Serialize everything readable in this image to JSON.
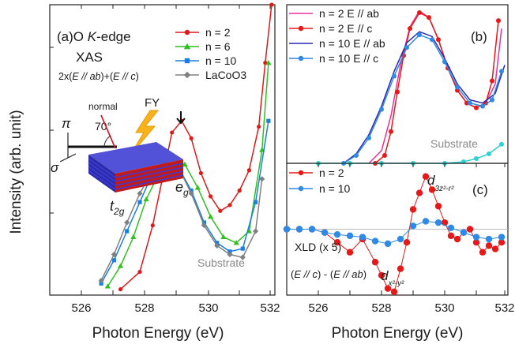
{
  "figure": {
    "ylabel": "Intensity (arb. unit)",
    "xlabel_left": "Photon Energy (eV)",
    "xlabel_right": "Photon Energy (eV)"
  },
  "panel_a": {
    "tag": "(a)",
    "title_main": "O ",
    "title_k": "K",
    "title_rest": "-edge",
    "title_xas": "XAS",
    "formula_pre": "2x(",
    "formula_e1": "E",
    "formula_ab": " // ab",
    "formula_mid": ")+(",
    "formula_e2": "E",
    "formula_c": " // c",
    "formula_post": ")",
    "label_pi": "π",
    "label_sigma": "σ",
    "label_normal": "normal",
    "label_angle": "70°",
    "label_fy": "FY",
    "label_t2g": "t",
    "label_t2g_sub": "2g",
    "label_eg": "e",
    "label_eg_sub": "g",
    "label_substrate": "Substrate",
    "xticks": [
      "526",
      "528",
      "530",
      "532"
    ]
  },
  "panel_b": {
    "tag": "(b)",
    "label_substrate": "Substrate",
    "xticks": [
      "526",
      "528",
      "530",
      "532"
    ]
  },
  "panel_c": {
    "tag": "(c)",
    "label_xld": "XLD (x 5)",
    "formula_pre": "(",
    "formula_e1": "E",
    "formula_c": " // c",
    "formula_mid": ") - (",
    "formula_e2": "E",
    "formula_ab": " // ab",
    "formula_post": ")",
    "orb1_d": "d",
    "orb1_sub": "x²-y²",
    "orb2_d": "d",
    "orb2_sub": "3z²-r²"
  },
  "chart_data": [
    {
      "id": "a",
      "type": "line",
      "title": "O K-edge XAS",
      "subtitle": "2x(E // ab)+(E // c)",
      "xlabel": "Photon Energy (eV)",
      "ylabel": "Intensity (arb. unit)",
      "xlim": [
        525,
        532
      ],
      "ylim": [
        0,
        1
      ],
      "grid": false,
      "legend_position": "top-right",
      "series": [
        {
          "name": "n = 2",
          "color": "#e01818",
          "marker": "circle",
          "x": [
            527.2,
            527.8,
            528.2,
            528.5,
            528.8,
            529.1,
            529.4,
            529.7,
            530.0,
            530.3,
            530.6,
            530.9,
            531.2,
            531.5,
            531.7,
            531.9
          ],
          "y": [
            0.02,
            0.08,
            0.24,
            0.4,
            0.56,
            0.6,
            0.54,
            0.42,
            0.34,
            0.29,
            0.31,
            0.36,
            0.43,
            0.58,
            0.8,
            1.0
          ]
        },
        {
          "name": "n = 6",
          "color": "#2fc020",
          "marker": "triangle",
          "x": [
            526.8,
            527.2,
            527.6,
            528.0,
            528.4,
            528.8,
            529.2,
            529.6,
            530.0,
            530.4,
            530.8,
            531.2,
            531.6,
            531.8
          ],
          "y": [
            0.03,
            0.1,
            0.2,
            0.33,
            0.42,
            0.47,
            0.45,
            0.37,
            0.27,
            0.2,
            0.18,
            0.22,
            0.5,
            0.8
          ]
        },
        {
          "name": "n = 10",
          "color": "#1a7fe0",
          "marker": "square",
          "x": [
            526.6,
            527.0,
            527.4,
            527.8,
            528.2,
            528.6,
            529.0,
            529.4,
            529.8,
            530.2,
            530.6,
            531.0,
            531.4,
            531.8
          ],
          "y": [
            0.04,
            0.12,
            0.22,
            0.32,
            0.42,
            0.46,
            0.44,
            0.36,
            0.25,
            0.18,
            0.15,
            0.16,
            0.32,
            0.6
          ]
        },
        {
          "name": "LaCoO3",
          "color": "#808080",
          "marker": "diamond",
          "x": [
            526.6,
            527.0,
            527.4,
            527.8,
            528.2,
            528.6,
            529.0,
            529.4,
            529.8,
            530.2,
            530.6,
            531.0,
            531.4,
            531.6
          ],
          "y": [
            0.05,
            0.14,
            0.25,
            0.35,
            0.43,
            0.46,
            0.44,
            0.35,
            0.24,
            0.17,
            0.14,
            0.13,
            0.22,
            0.4
          ]
        }
      ]
    },
    {
      "id": "b",
      "type": "line",
      "xlabel": "Photon Energy (eV)",
      "xlim": [
        525,
        532
      ],
      "ylim": [
        0,
        1
      ],
      "grid": false,
      "legend_position": "top-left",
      "series": [
        {
          "name": "n = 2 E // ab",
          "color": "#e8309a",
          "marker": "line",
          "x": [
            527.6,
            528.0,
            528.3,
            528.6,
            528.9,
            529.2,
            529.5,
            529.8,
            530.1,
            530.4,
            530.7,
            531.0,
            531.3,
            531.6,
            531.8
          ],
          "y": [
            0.0,
            0.08,
            0.3,
            0.62,
            0.86,
            0.96,
            0.92,
            0.78,
            0.6,
            0.46,
            0.38,
            0.35,
            0.38,
            0.5,
            0.85
          ]
        },
        {
          "name": "n = 2 E // c",
          "color": "#e81818",
          "marker": "circle",
          "x": [
            527.8,
            528.1,
            528.3,
            528.5,
            528.7,
            528.9,
            529.2,
            529.5,
            529.8,
            530.1,
            530.4,
            530.7,
            531.0,
            531.3,
            531.5,
            531.7
          ],
          "y": [
            0.0,
            0.05,
            0.2,
            0.45,
            0.68,
            0.85,
            0.95,
            0.92,
            0.78,
            0.6,
            0.46,
            0.38,
            0.35,
            0.38,
            0.52,
            0.9
          ]
        },
        {
          "name": "n = 10 E // ab",
          "color": "#2a2ab0",
          "marker": "line",
          "x": [
            526.8,
            527.2,
            527.6,
            528.0,
            528.4,
            528.8,
            529.2,
            529.6,
            530.0,
            530.4,
            530.8,
            531.2,
            531.6,
            531.9
          ],
          "y": [
            0.0,
            0.06,
            0.18,
            0.36,
            0.58,
            0.76,
            0.83,
            0.8,
            0.66,
            0.5,
            0.4,
            0.38,
            0.44,
            0.62
          ]
        },
        {
          "name": "n = 10 E // c",
          "color": "#2e8ae6",
          "marker": "circle",
          "x": [
            526.8,
            527.2,
            527.6,
            528.0,
            528.4,
            528.8,
            529.2,
            529.6,
            530.0,
            530.4,
            530.8,
            531.2,
            531.5,
            531.8
          ],
          "y": [
            0.0,
            0.05,
            0.16,
            0.34,
            0.55,
            0.73,
            0.81,
            0.78,
            0.64,
            0.48,
            0.38,
            0.36,
            0.4,
            0.58
          ]
        },
        {
          "name": "Substrate",
          "color": "#30d0d0",
          "marker": "circle",
          "x": [
            526.0,
            527.0,
            528.0,
            529.0,
            530.0,
            530.6,
            531.0,
            531.4,
            531.8
          ],
          "y": [
            0.0,
            0.0,
            0.0,
            0.0,
            0.0,
            0.01,
            0.03,
            0.06,
            0.12
          ]
        }
      ]
    },
    {
      "id": "c",
      "type": "line",
      "xlabel": "Photon Energy (eV)",
      "xlim": [
        525,
        532
      ],
      "ylim": [
        -1,
        1
      ],
      "grid": false,
      "legend_position": "top-left",
      "series": [
        {
          "name": "n = 2",
          "color": "#e81818",
          "marker": "circle",
          "x": [
            525.0,
            525.4,
            525.8,
            526.2,
            526.6,
            527.0,
            527.4,
            527.8,
            528.0,
            528.2,
            528.4,
            528.6,
            528.8,
            529.0,
            529.2,
            529.4,
            529.6,
            529.8,
            530.0,
            530.2,
            530.4,
            530.6,
            530.8,
            531.0,
            531.2,
            531.4,
            531.6,
            531.8
          ],
          "y": [
            0.0,
            0.0,
            0.0,
            -0.05,
            -0.2,
            -0.35,
            -0.15,
            -0.5,
            -0.7,
            -0.9,
            -0.95,
            -0.6,
            -0.2,
            0.3,
            0.55,
            0.8,
            0.6,
            0.35,
            0.1,
            -0.1,
            -0.15,
            -0.05,
            0.0,
            -0.2,
            -0.35,
            -0.25,
            -0.3,
            -0.2
          ]
        },
        {
          "name": "n = 10",
          "color": "#2e8ae6",
          "marker": "circle",
          "x": [
            525.0,
            525.4,
            525.8,
            526.2,
            526.6,
            527.0,
            527.4,
            527.8,
            528.2,
            528.6,
            529.0,
            529.4,
            529.8,
            530.2,
            530.6,
            531.0,
            531.4,
            531.8
          ],
          "y": [
            0.0,
            0.0,
            0.0,
            -0.05,
            -0.08,
            -0.1,
            -0.12,
            -0.18,
            -0.22,
            -0.15,
            0.05,
            0.12,
            0.1,
            0.02,
            -0.05,
            -0.12,
            -0.15,
            -0.12
          ]
        }
      ]
    }
  ]
}
